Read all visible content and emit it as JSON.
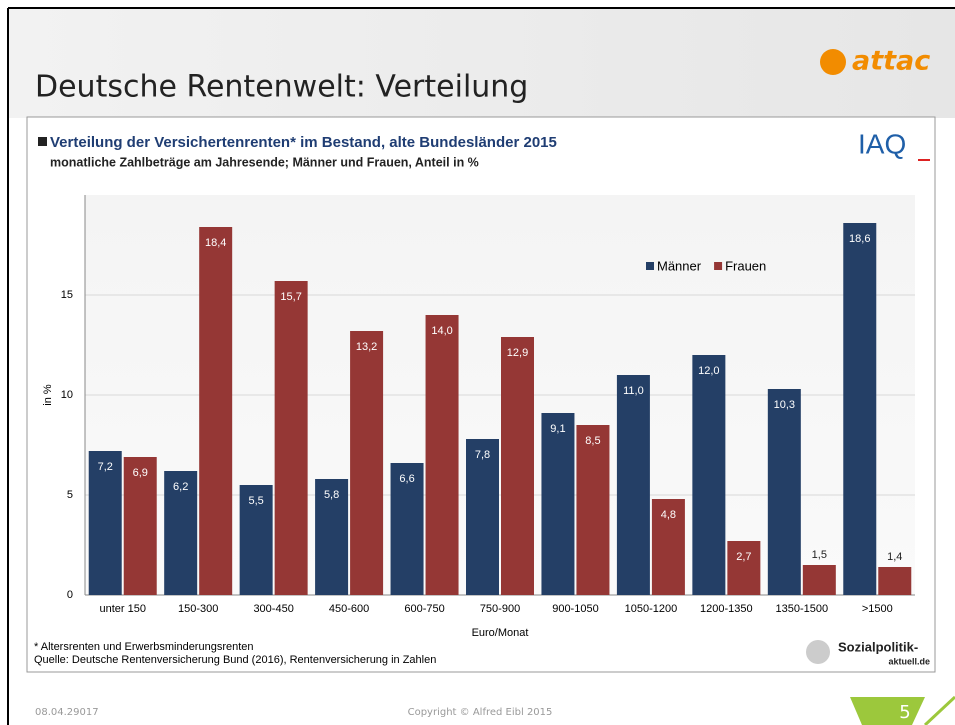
{
  "header": {
    "title": "Deutsche Rentenwelt: Verteilung",
    "logo": "attac"
  },
  "chart_data": {
    "type": "bar",
    "title": "Verteilung der Versichertenrenten* im Bestand, alte Bundesländer 2015",
    "subtitle": "monatliche Zahlbeträge am Jahresende; Männer und Frauen, Anteil in %",
    "logo": "IAQ",
    "y_label": "in %",
    "x_label": "Euro/Monat",
    "categories": [
      "unter 150",
      "150-300",
      "300-450",
      "450-600",
      "600-750",
      "750-900",
      "900-1050",
      "1050-1200",
      "1200-1350",
      "1350-1500",
      ">1500"
    ],
    "series": [
      {
        "name": "Männer",
        "color": "#243f66",
        "values": [
          7.2,
          6.2,
          5.5,
          5.8,
          6.6,
          7.8,
          9.1,
          11.0,
          12.0,
          10.3,
          18.6
        ],
        "value_labels": [
          "7,2",
          "6,2",
          "5,5",
          "5,8",
          "6,6",
          "7,8",
          "9,1",
          "11,0",
          "12,0",
          "10,3",
          "18,6"
        ]
      },
      {
        "name": "Frauen",
        "color": "#953735",
        "values": [
          6.9,
          18.4,
          15.7,
          13.2,
          14.0,
          12.9,
          8.5,
          4.8,
          2.7,
          1.5,
          1.4
        ],
        "value_labels": [
          "6,9",
          "18,4",
          "15,7",
          "13,2",
          "14,0",
          "12,9",
          "8,5",
          "4,8",
          "2,7",
          "1,5",
          "1,4"
        ]
      }
    ],
    "ylim": [
      0,
      20
    ],
    "yticks": [
      0,
      5,
      10,
      15
    ],
    "grid": true,
    "legend": "upper right",
    "footnote": "* Altersrenten und Erwerbsminderungsrenten",
    "source": "Quelle: Deutsche Rentenversicherung Bund (2016), Rentenversicherung in Zahlen",
    "source_logo": [
      "Sozialpolitik-",
      "aktuell.de"
    ]
  },
  "footer": {
    "date": "08.04.29017",
    "copyright": "Copyright © Alfred Eibl 2015",
    "page": "5"
  }
}
